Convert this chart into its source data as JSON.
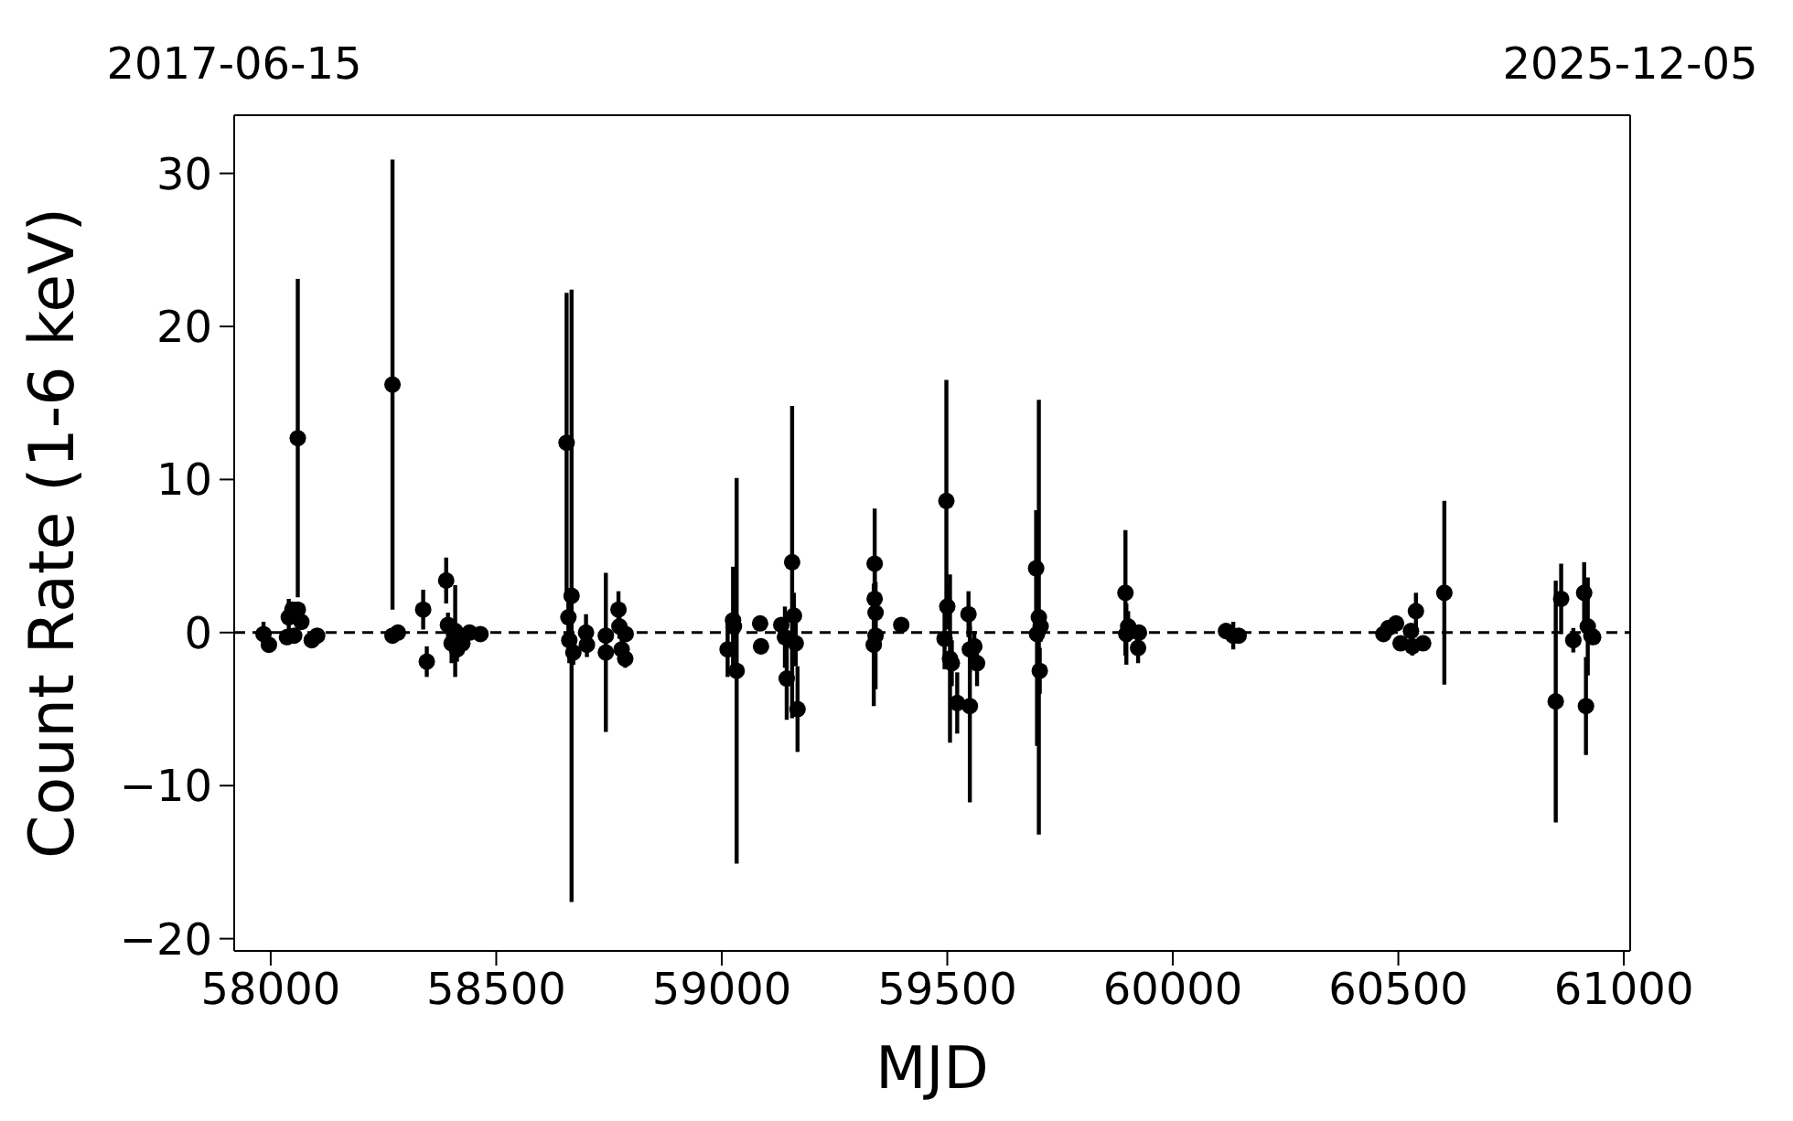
{
  "chart_data": {
    "type": "scatter",
    "xlabel": "MJD",
    "ylabel": "Count Rate (1-6 keV)",
    "color": "#000000",
    "marker": "circle",
    "grid": false,
    "legend": false,
    "x": [
      57984,
      57996,
      58036,
      58040,
      58048,
      58052,
      58060,
      58060,
      58068,
      58091,
      58103,
      58270,
      58270,
      58282,
      58338,
      58346,
      58389,
      58393,
      58401,
      58409,
      58413,
      58425,
      58441,
      58465,
      58656,
      58660,
      58662,
      58667,
      58671,
      58699,
      58701,
      58743,
      58743,
      58771,
      58773,
      58778,
      58786,
      58787,
      59013,
      59025,
      59027,
      59033,
      59085,
      59087,
      59132,
      59140,
      59144,
      59156,
      59160,
      59164,
      59168,
      59337,
      59339,
      59339,
      59341,
      59341,
      59398,
      59494,
      59498,
      59500,
      59506,
      59510,
      59522,
      59547,
      59550,
      59550,
      59560,
      59566,
      59697,
      59699,
      59703,
      59705,
      59707,
      59895,
      59897,
      59901,
      59923,
      59925,
      60118,
      60134,
      60146,
      60467,
      60478,
      60495,
      60505,
      60528,
      60531,
      60539,
      60555,
      60602,
      60849,
      60861,
      60888,
      60912,
      60916,
      60920,
      60928,
      60932
    ],
    "values": [
      -0.1,
      -0.8,
      -0.3,
      1.0,
      1.5,
      -0.2,
      12.7,
      1.5,
      0.7,
      -0.5,
      -0.2,
      16.2,
      -0.2,
      0.0,
      1.5,
      -1.9,
      3.4,
      0.5,
      -0.7,
      0.1,
      -1.1,
      -0.7,
      0.0,
      -0.1,
      12.4,
      1.0,
      -0.5,
      2.4,
      -1.3,
      0.0,
      -0.8,
      -0.2,
      -1.3,
      1.5,
      0.4,
      -1.1,
      -1.7,
      -0.1,
      -1.1,
      0.8,
      0.4,
      -2.5,
      0.6,
      -0.9,
      0.5,
      -0.3,
      -3.0,
      4.6,
      1.1,
      -0.7,
      -5.0,
      -0.8,
      4.5,
      2.2,
      1.3,
      -0.2,
      0.5,
      -0.4,
      8.6,
      1.7,
      -1.7,
      -2.0,
      -4.6,
      1.2,
      -1.1,
      -4.8,
      -0.9,
      -2.0,
      4.2,
      -0.1,
      1.0,
      -2.5,
      0.4,
      2.6,
      -0.1,
      0.4,
      -1.0,
      0.0,
      0.1,
      -0.2,
      -0.2,
      -0.1,
      0.3,
      0.6,
      -0.7,
      0.1,
      -0.9,
      1.4,
      -0.7,
      2.6,
      -4.5,
      2.2,
      -0.5,
      2.6,
      -4.8,
      0.4,
      -0.2,
      -0.3
    ],
    "errors": [
      0.8,
      0.3,
      0.5,
      1.2,
      0.5,
      0.4,
      10.4,
      0.5,
      0.5,
      0.3,
      0.3,
      14.7,
      0.3,
      0.3,
      1.3,
      1.0,
      1.5,
      0.8,
      1.3,
      3.0,
      0.8,
      0.5,
      0.4,
      0.3,
      9.8,
      1.2,
      1.5,
      20.0,
      0.8,
      1.2,
      0.8,
      0.5,
      5.2,
      1.2,
      0.8,
      0.8,
      0.6,
      0.4,
      1.8,
      3.5,
      1.0,
      12.6,
      0.5,
      0.5,
      0.5,
      2.0,
      2.7,
      10.2,
      1.5,
      1.5,
      2.8,
      4.0,
      3.6,
      2.0,
      1.0,
      3.5,
      0.5,
      2.0,
      7.9,
      1.5,
      5.5,
      1.5,
      2.0,
      1.5,
      1.5,
      6.3,
      1.0,
      1.5,
      3.8,
      7.3,
      14.2,
      1.5,
      1.0,
      4.1,
      2.0,
      1.0,
      1.0,
      0.5,
      0.5,
      0.9,
      0.4,
      0.4,
      0.4,
      0.4,
      0.5,
      0.3,
      0.6,
      1.2,
      0.5,
      6.0,
      7.9,
      2.3,
      0.8,
      2.0,
      3.2,
      3.2,
      0.6,
      0.4
    ],
    "xlim": [
      57919,
      61014
    ],
    "xticks": [
      58000,
      58500,
      59000,
      59500,
      60000,
      60500,
      61000
    ],
    "x2lim": [
      "2017-06-15",
      "2025-12-05"
    ],
    "x2ticks": [
      "2017-06-15",
      "2025-12-05"
    ],
    "ylim": [
      -20.8,
      33.8
    ],
    "yticks": [
      -20,
      -10,
      0,
      10,
      20,
      30
    ],
    "ref_lines": [
      {
        "axis": "y",
        "value": 0,
        "color": "#000000",
        "line_style": "dashed"
      }
    ]
  }
}
